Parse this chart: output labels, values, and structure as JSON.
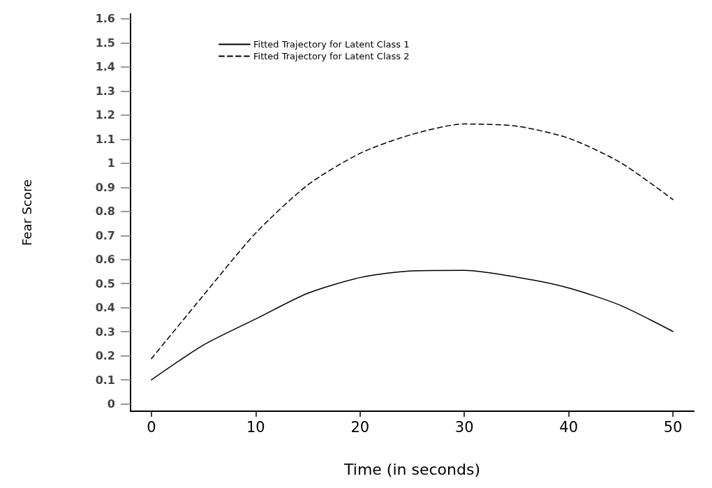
{
  "chart_data": {
    "type": "line",
    "xlabel": "Time (in seconds)",
    "ylabel": "Fear Score",
    "x": [
      0,
      5,
      10,
      15,
      20,
      25,
      30,
      35,
      40,
      45,
      50
    ],
    "series": [
      {
        "name": "Fitted Trajectory for Latent Class 1",
        "color": "#000000",
        "line_style": "solid",
        "values": [
          0.1,
          0.245,
          0.353,
          0.46,
          0.525,
          0.553,
          0.555,
          0.527,
          0.482,
          0.409,
          0.301
        ]
      },
      {
        "name": "Fitted Trajectory for Latent Class 2",
        "color": "#000000",
        "line_style": "dashed",
        "values": [
          0.188,
          0.452,
          0.71,
          0.91,
          1.041,
          1.12,
          1.163,
          1.154,
          1.104,
          1.002,
          0.849
        ]
      }
    ],
    "xlim": [
      -2,
      52
    ],
    "xticks": [
      0,
      10,
      20,
      30,
      40,
      50
    ],
    "ylim": [
      -0.03,
      1.62
    ],
    "yticks": [
      0,
      0.1,
      0.2,
      0.3,
      0.4,
      0.5,
      0.6,
      0.7,
      0.8,
      0.9,
      1,
      1.1,
      1.2,
      1.3,
      1.4,
      1.5,
      1.6
    ],
    "grid": false,
    "legend": "top left",
    "marker": "none"
  }
}
